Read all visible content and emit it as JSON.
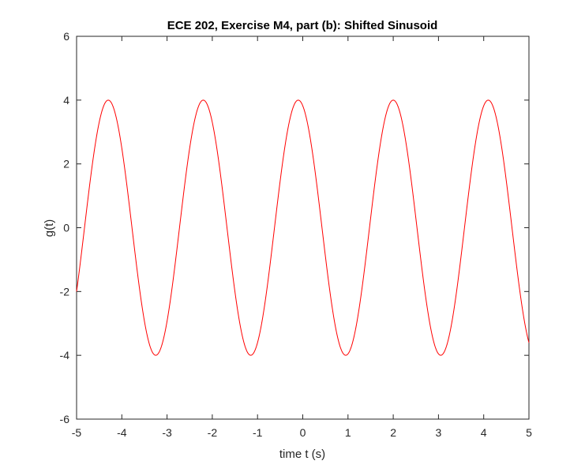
{
  "chart_data": {
    "type": "line",
    "title": "ECE 202, Exercise M4, part (b): Shifted Sinusoid",
    "xlabel": "time t (s)",
    "ylabel": "g(t)",
    "xlim": [
      -5,
      5
    ],
    "ylim": [
      -6,
      6
    ],
    "xticks": [
      -5,
      -4,
      -3,
      -2,
      -1,
      0,
      1,
      2,
      3,
      4,
      5
    ],
    "yticks": [
      -6,
      -4,
      -2,
      0,
      2,
      4,
      6
    ],
    "grid": false,
    "series": [
      {
        "amplitude": 4,
        "period": 2.1,
        "peak_times": [
          -4.3,
          -2.2,
          -0.1,
          2.0,
          4.1
        ],
        "trough_times": [
          -3.25,
          -1.15,
          0.95,
          3.05
        ],
        "value_at_x_min": -2,
        "value_at_x_max": -3.6,
        "color": "#ff0000"
      }
    ]
  },
  "colors": {
    "axis": "#262626",
    "line": "#ff0000"
  }
}
